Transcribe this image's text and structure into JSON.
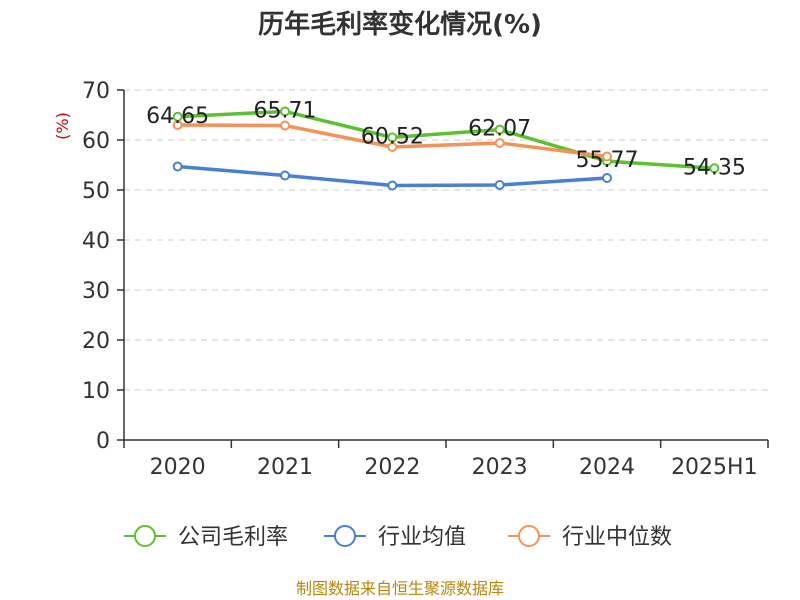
{
  "chart_data": {
    "type": "line",
    "title": "历年毛利率变化情况(%)",
    "ylabel": "(%)",
    "xlabel": "",
    "categories": [
      "2020",
      "2021",
      "2022",
      "2023",
      "2024",
      "2025H1"
    ],
    "ylim": [
      0,
      70
    ],
    "yticks": [
      0,
      10,
      20,
      30,
      40,
      50,
      60,
      70
    ],
    "grid": true,
    "legend_position": "bottom",
    "series": [
      {
        "name": "公司毛利率",
        "color": "#5cc12e",
        "values": [
          64.65,
          65.71,
          60.52,
          62.07,
          55.77,
          54.35
        ],
        "labels": [
          "64.65",
          "65.71",
          "60.52",
          "62.07",
          "55.77",
          "54.35"
        ]
      },
      {
        "name": "行业均值",
        "color": "#4a7fd6",
        "values": [
          54.7,
          52.9,
          50.9,
          51.0,
          52.4,
          null
        ]
      },
      {
        "name": "行业中位数",
        "color": "#f4925a",
        "values": [
          63.0,
          62.9,
          58.6,
          59.4,
          56.7,
          null
        ]
      }
    ]
  },
  "footer": "制图数据来自恒生聚源数据库"
}
